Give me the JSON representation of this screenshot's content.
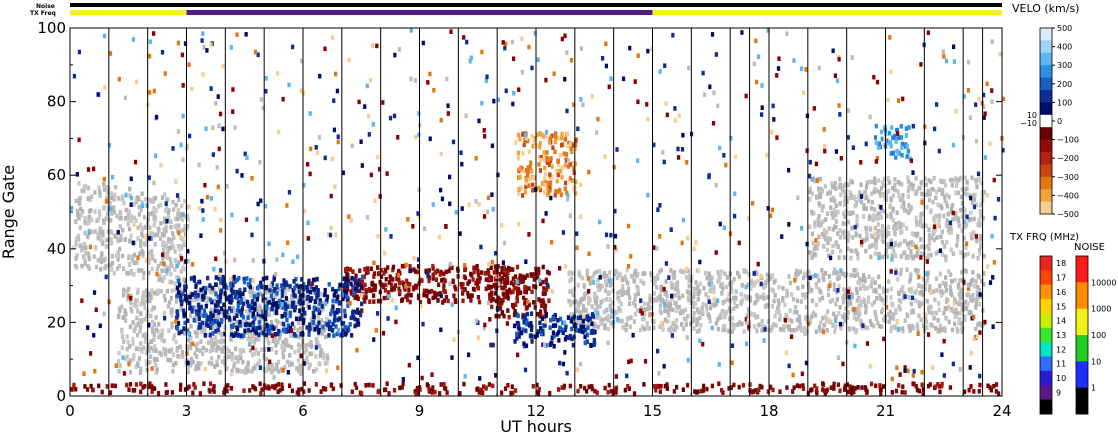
{
  "header": {
    "noise_label": "Noise",
    "txfreq_label": "TX Freq"
  },
  "colors": {
    "yellow": "#f2f21a",
    "purple": "#5a1a86",
    "black": "#000000",
    "grey_scatter": "#bdbdbd"
  },
  "freq_bar_segments": [
    {
      "from": 0,
      "to": 3,
      "color": "yellow"
    },
    {
      "from": 3,
      "to": 15,
      "color": "purple"
    },
    {
      "from": 15,
      "to": 24,
      "color": "yellow"
    }
  ],
  "chart_data": {
    "type": "heatmap",
    "xlabel": "UT hours",
    "ylabel": "Range Gate",
    "xlim": [
      0,
      24
    ],
    "ylim": [
      0,
      100
    ],
    "x_ticks": [
      "0",
      "3",
      "6",
      "9",
      "12",
      "15",
      "18",
      "21",
      "24"
    ],
    "y_ticks": [
      "0",
      "20",
      "40",
      "60",
      "80",
      "100"
    ],
    "scan_boundaries_hours": [
      1,
      2,
      3,
      4,
      5,
      6,
      7,
      8,
      9,
      10,
      11,
      12,
      13,
      14,
      15,
      16,
      17,
      17.5,
      18,
      19,
      20,
      21,
      22,
      23,
      23.5
    ],
    "regions": [
      {
        "desc": "ground scatter",
        "color": "grey",
        "x": [
          0.1,
          3.0
        ],
        "y": [
          38,
          62
        ],
        "slope": -0.6
      },
      {
        "desc": "ground scatter",
        "color": "grey",
        "x": [
          1.2,
          6.6
        ],
        "y": [
          7,
          30
        ]
      },
      {
        "desc": "ground scatter",
        "color": "grey",
        "x": [
          12.8,
          23.5
        ],
        "y": [
          18,
          35
        ]
      },
      {
        "desc": "ground scatter",
        "color": "grey",
        "x": [
          19.0,
          23.5
        ],
        "y": [
          38,
          60
        ]
      },
      {
        "desc": "negative velocity",
        "color": "darkred",
        "x": [
          7.0,
          11.3
        ],
        "y": [
          26,
          36
        ]
      },
      {
        "desc": "negative velocity",
        "color": "darkred",
        "x": [
          10.8,
          12.3
        ],
        "y": [
          22,
          36
        ]
      },
      {
        "desc": "positive velocity",
        "color": "navy",
        "x": [
          2.7,
          7.5
        ],
        "y": [
          17,
          33
        ]
      },
      {
        "desc": "positive velocity",
        "color": "navy",
        "x": [
          11.4,
          13.5
        ],
        "y": [
          14,
          23
        ]
      },
      {
        "desc": "positive velocity",
        "color": "blue",
        "x": [
          20.7,
          21.6
        ],
        "y": [
          65,
          74
        ]
      },
      {
        "desc": "negative velocity",
        "color": "orange",
        "x": [
          11.5,
          13.0
        ],
        "y": [
          55,
          72
        ]
      },
      {
        "desc": "near range noise",
        "color": "darkred",
        "x": [
          0,
          24
        ],
        "y": [
          0,
          4
        ]
      }
    ]
  },
  "velocity_scale": {
    "title": "VELO (km/s)",
    "ticks": [
      "500",
      "400",
      "300",
      "200",
      "100",
      "0",
      "−100",
      "−200",
      "−300",
      "−400",
      "−500"
    ],
    "mid_labels": [
      "10",
      "−10"
    ],
    "colors": [
      "#d8eefc",
      "#9fd3f5",
      "#5bb6ef",
      "#2d8fe0",
      "#1660c8",
      "#0b2f9a",
      "#000c6a",
      "#ffffff",
      "#6b0000",
      "#900a0a",
      "#b31f12",
      "#c84410",
      "#e07712",
      "#f1a23a",
      "#f8cd95"
    ]
  },
  "txfreq_scale": {
    "title": "TX FRQ (MHz)",
    "ticks": [
      "18",
      "17",
      "16",
      "15",
      "14",
      "13",
      "12",
      "11",
      "10",
      "9"
    ],
    "colors": [
      "#e8261e",
      "#ff4500",
      "#ff9200",
      "#ffd200",
      "#c8f000",
      "#39e629",
      "#00e6c8",
      "#2f6cff",
      "#2a1ad6",
      "#5a1a86",
      "#000000"
    ]
  },
  "noise_scale": {
    "title": "NOISE",
    "ticks": [
      "10000",
      "1000",
      "100",
      "10",
      "1"
    ],
    "colors": [
      "#ff1a1a",
      "#ff8c00",
      "#f2f21a",
      "#22cc22",
      "#1e2fff",
      "#000000"
    ]
  }
}
